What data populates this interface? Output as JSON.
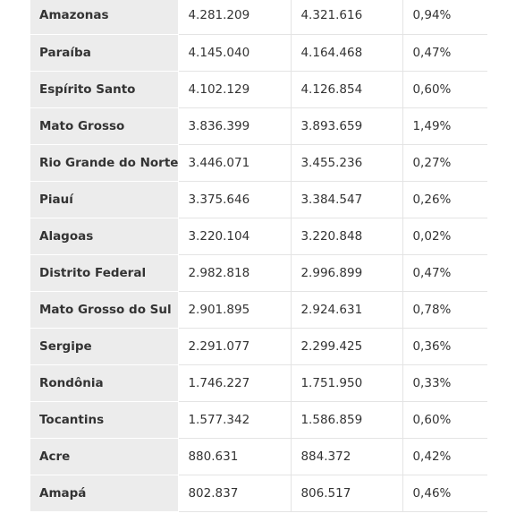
{
  "table": {
    "rows": [
      [
        "Amazonas",
        "4.281.209",
        "4.321.616",
        "0,94%"
      ],
      [
        "Paraíba",
        "4.145.040",
        "4.164.468",
        "0,47%"
      ],
      [
        "Espírito Santo",
        "4.102.129",
        "4.126.854",
        "0,60%"
      ],
      [
        "Mato Grosso",
        "3.836.399",
        "3.893.659",
        "1,49%"
      ],
      [
        "Rio Grande do Norte",
        "3.446.071",
        "3.455.236",
        "0,27%"
      ],
      [
        "Piauí",
        "3.375.646",
        "3.384.547",
        "0,26%"
      ],
      [
        "Alagoas",
        "3.220.104",
        "3.220.848",
        "0,02%"
      ],
      [
        "Distrito Federal",
        "2.982.818",
        "2.996.899",
        "0,47%"
      ],
      [
        "Mato Grosso do Sul",
        "2.901.895",
        "2.924.631",
        "0,78%"
      ],
      [
        "Sergipe",
        "2.291.077",
        "2.299.425",
        "0,36%"
      ],
      [
        "Rondônia",
        "1.746.227",
        "1.751.950",
        "0,33%"
      ],
      [
        "Tocantins",
        "1.577.342",
        "1.586.859",
        "0,60%"
      ],
      [
        "Acre",
        "880.631",
        "884.372",
        "0,42%"
      ],
      [
        "Amapá",
        "802.837",
        "806.517",
        "0,46%"
      ]
    ]
  }
}
